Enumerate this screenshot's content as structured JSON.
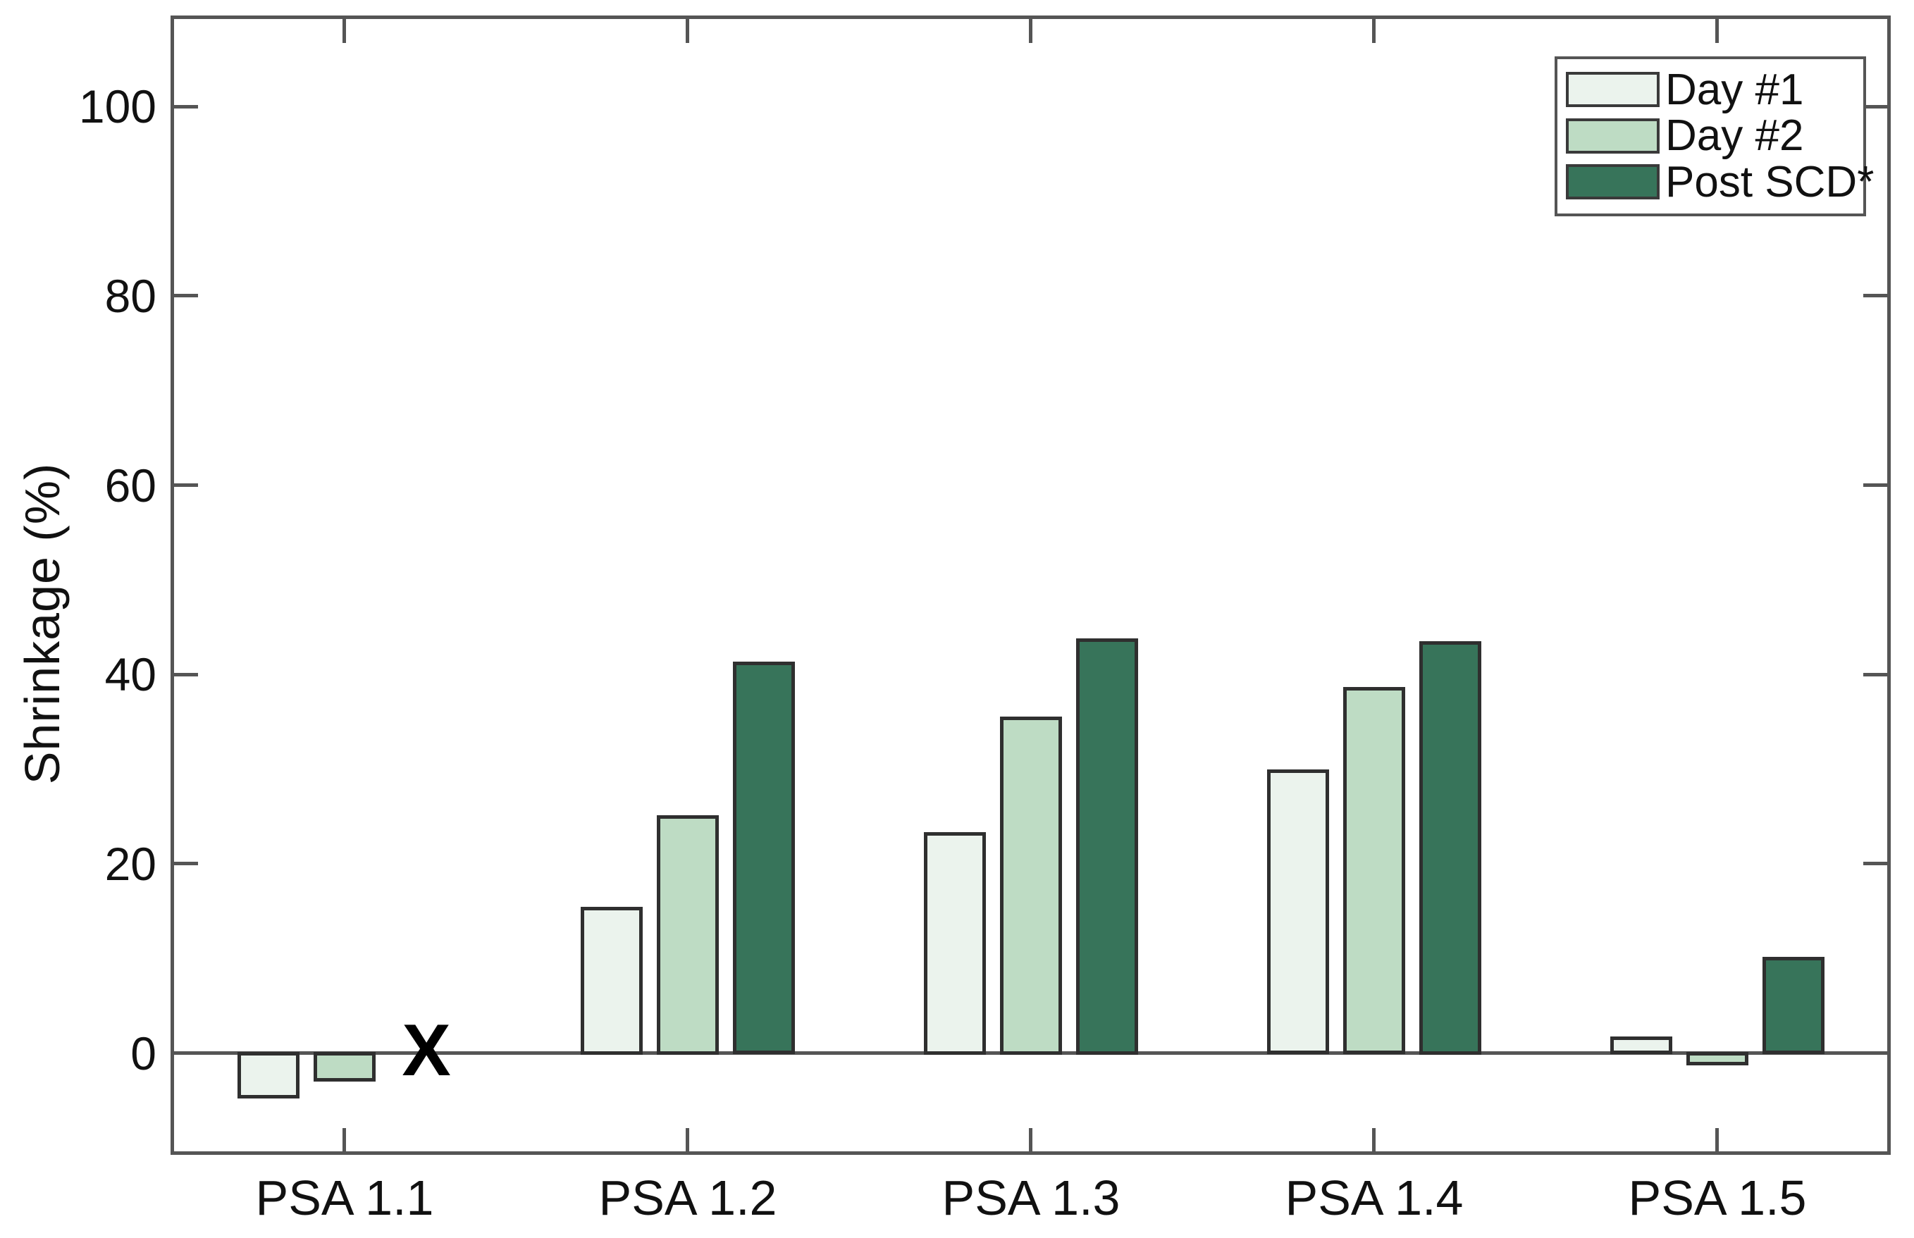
{
  "chart_data": {
    "type": "bar",
    "title": "",
    "categories": [
      "PSA 1.1",
      "PSA 1.2",
      "PSA 1.3",
      "PSA 1.4",
      "PSA 1.5"
    ],
    "series": [
      {
        "name": "Day #1",
        "color": "#ebf3ed",
        "values": [
          -4.6,
          15.3,
          23.2,
          29.8,
          1.6
        ]
      },
      {
        "name": "Day #2",
        "color": "#bedcc4",
        "values": [
          -2.8,
          25.0,
          35.4,
          38.5,
          -1.1
        ]
      },
      {
        "name": "Post SCD*",
        "color": "#37745a",
        "values": [
          null,
          41.2,
          43.7,
          43.4,
          10.0
        ]
      }
    ],
    "missing_data_marker": {
      "symbol": "X",
      "series": "Post SCD*",
      "category": "PSA 1.1",
      "value": 0
    },
    "xlabel": "",
    "ylabel": "Shrinkage (%)",
    "yticks": [
      0,
      20,
      40,
      60,
      80,
      100
    ],
    "ylim": [
      -10.6,
      109.4
    ],
    "grid": false,
    "legend_position": "top-right",
    "bar_edge_color": "#2f2f2f",
    "axis_color": "#555555",
    "marker_color": "#000000",
    "text_color": "#111111"
  }
}
